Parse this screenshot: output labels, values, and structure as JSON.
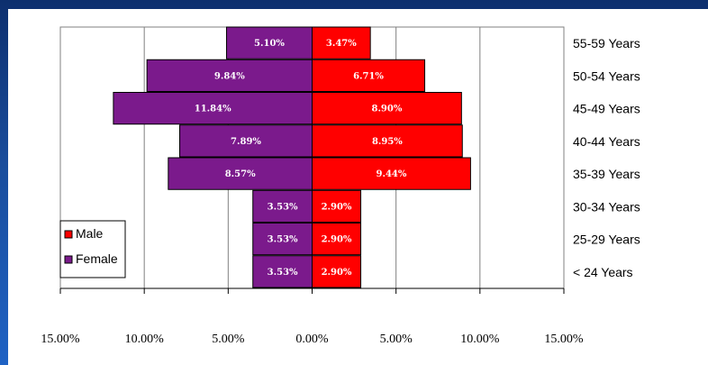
{
  "chart_data": {
    "type": "bar",
    "orientation": "horizontal-population-pyramid",
    "categories": [
      "55-59 Years",
      "50-54 Years",
      "45-49 Years",
      "40-44 Years",
      "35-39 Years",
      "30-34 Years",
      "25-29 Years",
      "< 24  Years"
    ],
    "series": [
      {
        "name": "Male",
        "values": [
          3.47,
          6.71,
          8.9,
          8.95,
          9.44,
          2.9,
          2.9,
          2.9
        ],
        "labels": [
          "3.47%",
          "6.71%",
          "8.90%",
          "8.95%",
          "9.44%",
          "2.90%",
          "2.90%",
          "2.90%"
        ],
        "color": "#ff0000"
      },
      {
        "name": "Female",
        "values": [
          5.1,
          9.84,
          11.84,
          7.89,
          8.57,
          3.53,
          3.53,
          3.53
        ],
        "labels": [
          "5.10%",
          "9.84%",
          "11.84%",
          "7.89%",
          "8.57%",
          "3.53%",
          "3.53%",
          "3.53%"
        ],
        "color": "#7b1a8c"
      }
    ],
    "xticks": [
      "15.00%",
      "10.00%",
      "5.00%",
      "0.00%",
      "5.00%",
      "10.00%",
      "15.00%"
    ],
    "xlim": [
      -15,
      15
    ],
    "grid": true,
    "legend_position": "bottom-left"
  }
}
